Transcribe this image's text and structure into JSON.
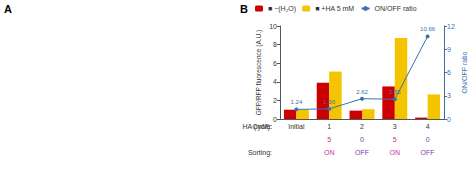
{
  "chart_data": {
    "type": "bar",
    "annotations": [
      "A",
      "B"
    ],
    "categories": [
      "Initial",
      "1",
      "2",
      "3",
      "4"
    ],
    "xlabel": "Cycle:",
    "ylabel": "GFP/RFP fluorescence (A.U.)",
    "y2label": "ON/OFF ratio",
    "series": [
      {
        "name": "■ −(H₂O)",
        "color": "#cc0000",
        "values": [
          1.0,
          3.9,
          0.9,
          3.5,
          0.15
        ]
      },
      {
        "name": "■ +HA 5 mM",
        "color": "#f5c400",
        "values": [
          1.0,
          5.1,
          1.05,
          8.7,
          2.65
        ]
      },
      {
        "name": "ON/OFF ratio",
        "type": "line",
        "axis": "y2",
        "color": "#3a70b0",
        "marker": "circle",
        "data_labels": true,
        "values": [
          1.24,
          1.3,
          2.62,
          2.55,
          10.66
        ],
        "value_labels": [
          "1.24",
          "1.30",
          "2.62",
          "2.55",
          "10.66"
        ]
      }
    ],
    "ylim": [
      0,
      10
    ],
    "yticks": [
      0,
      2,
      4,
      6,
      8,
      10
    ],
    "y2lim": [
      0,
      12
    ],
    "y2ticks": [
      0,
      3,
      6,
      9,
      12
    ],
    "grid": false,
    "legend": "top",
    "rows": [
      {
        "label": "HA (mM):",
        "values": [
          null,
          "5",
          "0",
          "5",
          "0"
        ],
        "colors": [
          null,
          "#cc3399",
          "#7744aa",
          "#cc3399",
          "#7744aa"
        ]
      },
      {
        "label": "Sorting:",
        "values": [
          null,
          "ON",
          "OFF",
          "ON",
          "OFF"
        ],
        "colors": [
          null,
          "#cc3399",
          "#7744aa",
          "#cc3399",
          "#7744aa"
        ]
      }
    ]
  }
}
